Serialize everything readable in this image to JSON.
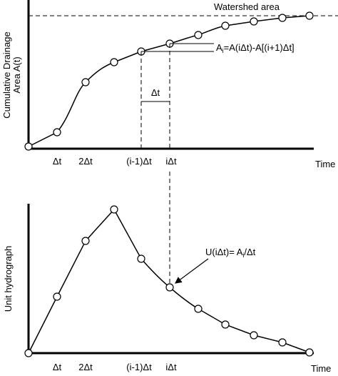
{
  "top_panel": {
    "y_label": [
      "Cumulative Drainage",
      "Area A(t)"
    ],
    "reference_label": "Watershed area",
    "increment_label": {
      "main": "A",
      "sub": "i",
      "rest": "=A(iΔt)-A[(i+1)Δt]"
    },
    "interval_label": "Δt",
    "x_labels": [
      "Δt",
      "2Δt",
      "(i-1)Δt",
      "iΔt"
    ],
    "x_axis_label": "Time"
  },
  "bottom_panel": {
    "y_label": "Unit hydrograph",
    "annotation": {
      "main": "U(iΔt)= A",
      "sub": "i",
      "rest": "/Δt"
    },
    "x_labels": [
      "Δt",
      "2Δt",
      "(i-1)Δt",
      "iΔt"
    ],
    "x_axis_label": "Time"
  }
}
